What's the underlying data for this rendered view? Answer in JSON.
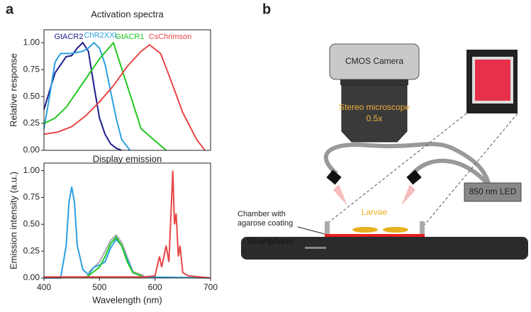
{
  "panel_labels": [
    "a",
    "b"
  ],
  "chart_data": [
    {
      "type": "line",
      "title": "Activation spectra",
      "ylabel": "Relative response",
      "xlim": [
        400,
        700
      ],
      "ylim": [
        0,
        1.12
      ],
      "yticks": [
        {
          "value": 0,
          "label": "0.00"
        },
        0.25,
        {
          "value": 0.5,
          "label": "0.50"
        },
        0.75,
        {
          "value": 1,
          "label": "1.00"
        }
      ],
      "series": [
        {
          "name": "GtACR2",
          "color": "#1c1c8c",
          "x": [
            400,
            420,
            440,
            450,
            460,
            470,
            480,
            490,
            500,
            510,
            520,
            530,
            540
          ],
          "values": [
            0.38,
            0.72,
            0.87,
            0.88,
            0.95,
            1.0,
            0.92,
            0.6,
            0.3,
            0.15,
            0.06,
            0.02,
            0
          ]
        },
        {
          "name": "ChR2XXL",
          "color": "#2a9fe0",
          "x": [
            400,
            410,
            420,
            430,
            450,
            470,
            480,
            490,
            500,
            510,
            520,
            530,
            540,
            555
          ],
          "values": [
            0.2,
            0.5,
            0.82,
            0.9,
            0.9,
            0.92,
            0.95,
            1.0,
            0.95,
            0.8,
            0.55,
            0.3,
            0.1,
            0
          ]
        },
        {
          "name": "GtACR1",
          "color": "#22c822",
          "x": [
            400,
            420,
            440,
            460,
            480,
            500,
            525,
            550,
            575,
            620
          ],
          "values": [
            0.25,
            0.3,
            0.4,
            0.55,
            0.7,
            0.85,
            1.0,
            0.6,
            0.2,
            0
          ]
        },
        {
          "name": "CsChrimson",
          "color": "#e84545",
          "x": [
            400,
            425,
            450,
            475,
            500,
            525,
            550,
            575,
            590,
            610,
            625,
            650,
            675,
            690
          ],
          "values": [
            0.15,
            0.17,
            0.22,
            0.32,
            0.45,
            0.6,
            0.78,
            0.92,
            0.98,
            0.9,
            0.7,
            0.35,
            0.1,
            0
          ]
        }
      ]
    },
    {
      "type": "line",
      "title": "Display emission",
      "ylabel": "Emission intensity (a.u.)",
      "xlabel": "Wavelength (nm)",
      "xlim": [
        400,
        700
      ],
      "ylim": [
        0,
        1.07
      ],
      "xticks": [
        400,
        500,
        600,
        700
      ],
      "yticks": [
        {
          "value": 0,
          "label": "0.00"
        },
        0.25,
        {
          "value": 0.5,
          "label": "0.50"
        },
        0.75,
        {
          "value": 1,
          "label": "1.00"
        }
      ],
      "series": [
        {
          "color": "#aaaaaa",
          "x": [
            480,
            500,
            520,
            530,
            540,
            560,
            580
          ],
          "values": [
            0.05,
            0.15,
            0.35,
            0.4,
            0.33,
            0.06,
            0.02
          ]
        },
        {
          "color": "#2a9fe0",
          "x": [
            400,
            430,
            440,
            445,
            450,
            455,
            460,
            470,
            480,
            490,
            500,
            510,
            520,
            530,
            540,
            560,
            580,
            700
          ],
          "values": [
            0,
            0,
            0.3,
            0.7,
            0.85,
            0.7,
            0.3,
            0.08,
            0.03,
            0.1,
            0.12,
            0.15,
            0.28,
            0.36,
            0.3,
            0.05,
            0.01,
            0
          ]
        },
        {
          "color": "#22c822",
          "x": [
            470,
            480,
            500,
            510,
            520,
            530,
            540,
            550,
            560,
            575,
            580
          ],
          "values": [
            0,
            0.02,
            0.1,
            0.2,
            0.32,
            0.38,
            0.3,
            0.15,
            0.05,
            0.02,
            0
          ]
        },
        {
          "color": "#e84545",
          "x": [
            400,
            580,
            600,
            608,
            612,
            620,
            625,
            632,
            635,
            638,
            642,
            645,
            650,
            660,
            700
          ],
          "values": [
            0.01,
            0.01,
            0.02,
            0.2,
            0.1,
            0.3,
            0.15,
            1.0,
            0.5,
            0.6,
            0.2,
            0.3,
            0.05,
            0.02,
            0
          ]
        }
      ]
    }
  ],
  "diagram": {
    "camera": "CMOS Camera",
    "microscope": "Stereo microscope",
    "magnification": "0.5x",
    "led": "850 nm LED",
    "larvae": "Larvae",
    "chamber": "Chamber with",
    "chamber2": "agarose coating",
    "phone": "Smartphone"
  }
}
